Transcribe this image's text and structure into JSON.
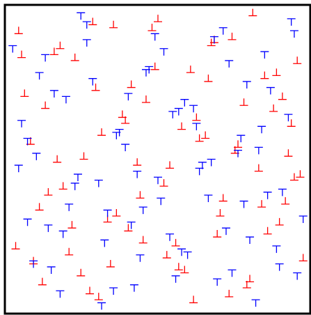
{
  "chart_data": {
    "type": "scatter",
    "xlim": [
      0,
      100
    ],
    "ylim": [
      0,
      100
    ],
    "grid": false,
    "series": [
      {
        "color": "#ff0000",
        "marker": "tickup",
        "x": [
          3,
          8,
          12,
          18,
          22,
          27,
          31,
          36,
          41,
          45,
          50,
          54,
          59,
          63,
          68,
          72,
          77,
          81,
          86,
          91,
          95,
          98,
          5,
          10,
          15,
          20,
          25,
          30,
          35,
          40,
          46,
          52,
          57,
          61,
          66,
          70,
          75,
          80,
          84,
          89,
          93,
          97,
          2,
          7,
          13,
          17,
          24,
          29,
          33,
          38,
          43,
          48,
          53,
          58,
          62,
          67,
          71,
          76,
          82,
          87,
          92,
          96,
          4,
          11,
          16,
          21,
          28,
          34,
          39,
          44,
          49,
          56,
          64,
          69,
          74,
          79,
          85,
          90,
          94,
          99
        ],
        "values": [
          92,
          15,
          67,
          40,
          83,
          5,
          58,
          31,
          74,
          22,
          96,
          47,
          12,
          63,
          88,
          36,
          54,
          9,
          77,
          28,
          61,
          44,
          71,
          33,
          85,
          18,
          50,
          3,
          94,
          26,
          69,
          41,
          13,
          79,
          57,
          24,
          90,
          7,
          46,
          66,
          35,
          82,
          20,
          55,
          38,
          87,
          11,
          73,
          29,
          64,
          48,
          93,
          17,
          60,
          2,
          76,
          31,
          52,
          98,
          25,
          70,
          43,
          84,
          8,
          49,
          27,
          95,
          14,
          62,
          37,
          80,
          21,
          56,
          89,
          4,
          68,
          34,
          78,
          51,
          16
        ]
      },
      {
        "color": "#0000ff",
        "marker": "tickdown",
        "x": [
          1,
          6,
          9,
          14,
          19,
          23,
          26,
          32,
          37,
          42,
          47,
          51,
          55,
          60,
          65,
          69,
          73,
          78,
          83,
          88,
          92,
          97,
          4,
          12,
          17,
          22,
          28,
          33,
          39,
          44,
          49,
          54,
          59,
          64,
          70,
          74,
          79,
          85,
          90,
          95,
          3,
          8,
          15,
          20,
          26,
          31,
          36,
          41,
          46,
          50,
          56,
          62,
          67,
          72,
          77,
          81,
          86,
          91,
          94,
          99,
          6,
          10,
          18,
          24,
          30,
          35,
          40,
          45,
          52,
          58,
          63,
          68,
          75,
          80,
          87,
          96,
          43,
          57,
          13,
          84
        ],
        "values": [
          88,
          30,
          52,
          14,
          71,
          45,
          96,
          23,
          60,
          8,
          81,
          37,
          66,
          19,
          49,
          91,
          27,
          58,
          3,
          74,
          40,
          12,
          63,
          85,
          6,
          42,
          77,
          33,
          55,
          18,
          92,
          25,
          70,
          47,
          10,
          83,
          36,
          61,
          21,
          97,
          48,
          16,
          73,
          35,
          90,
          2,
          59,
          29,
          80,
          44,
          11,
          68,
          38,
          94,
          53,
          24,
          86,
          15,
          65,
          31,
          57,
          79,
          26,
          99,
          43,
          7,
          72,
          34,
          87,
          20,
          62,
          50,
          13,
          76,
          39,
          93,
          46,
          67,
          28,
          54
        ]
      }
    ]
  }
}
